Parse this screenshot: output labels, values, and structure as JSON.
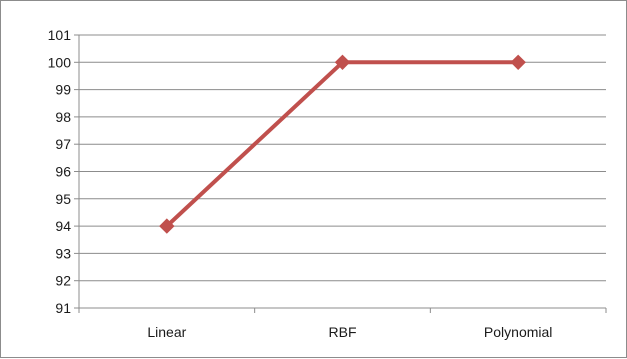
{
  "chart_data": {
    "type": "line",
    "categories": [
      "Linear",
      "RBF",
      "Polynomial"
    ],
    "series": [
      {
        "values": [
          94,
          100,
          100
        ],
        "color": "#c0504d",
        "marker": "diamond"
      }
    ],
    "title": "",
    "xlabel": "",
    "ylabel": "",
    "ylim": [
      91,
      101
    ],
    "yticks": [
      91,
      92,
      93,
      94,
      95,
      96,
      97,
      98,
      99,
      100,
      101
    ],
    "grid": true,
    "legend": "none",
    "colors": {
      "gridline": "#8c8c8c",
      "axis": "#8c8c8c",
      "border": "#8c8c8c",
      "text": "#1a1a1a"
    }
  }
}
